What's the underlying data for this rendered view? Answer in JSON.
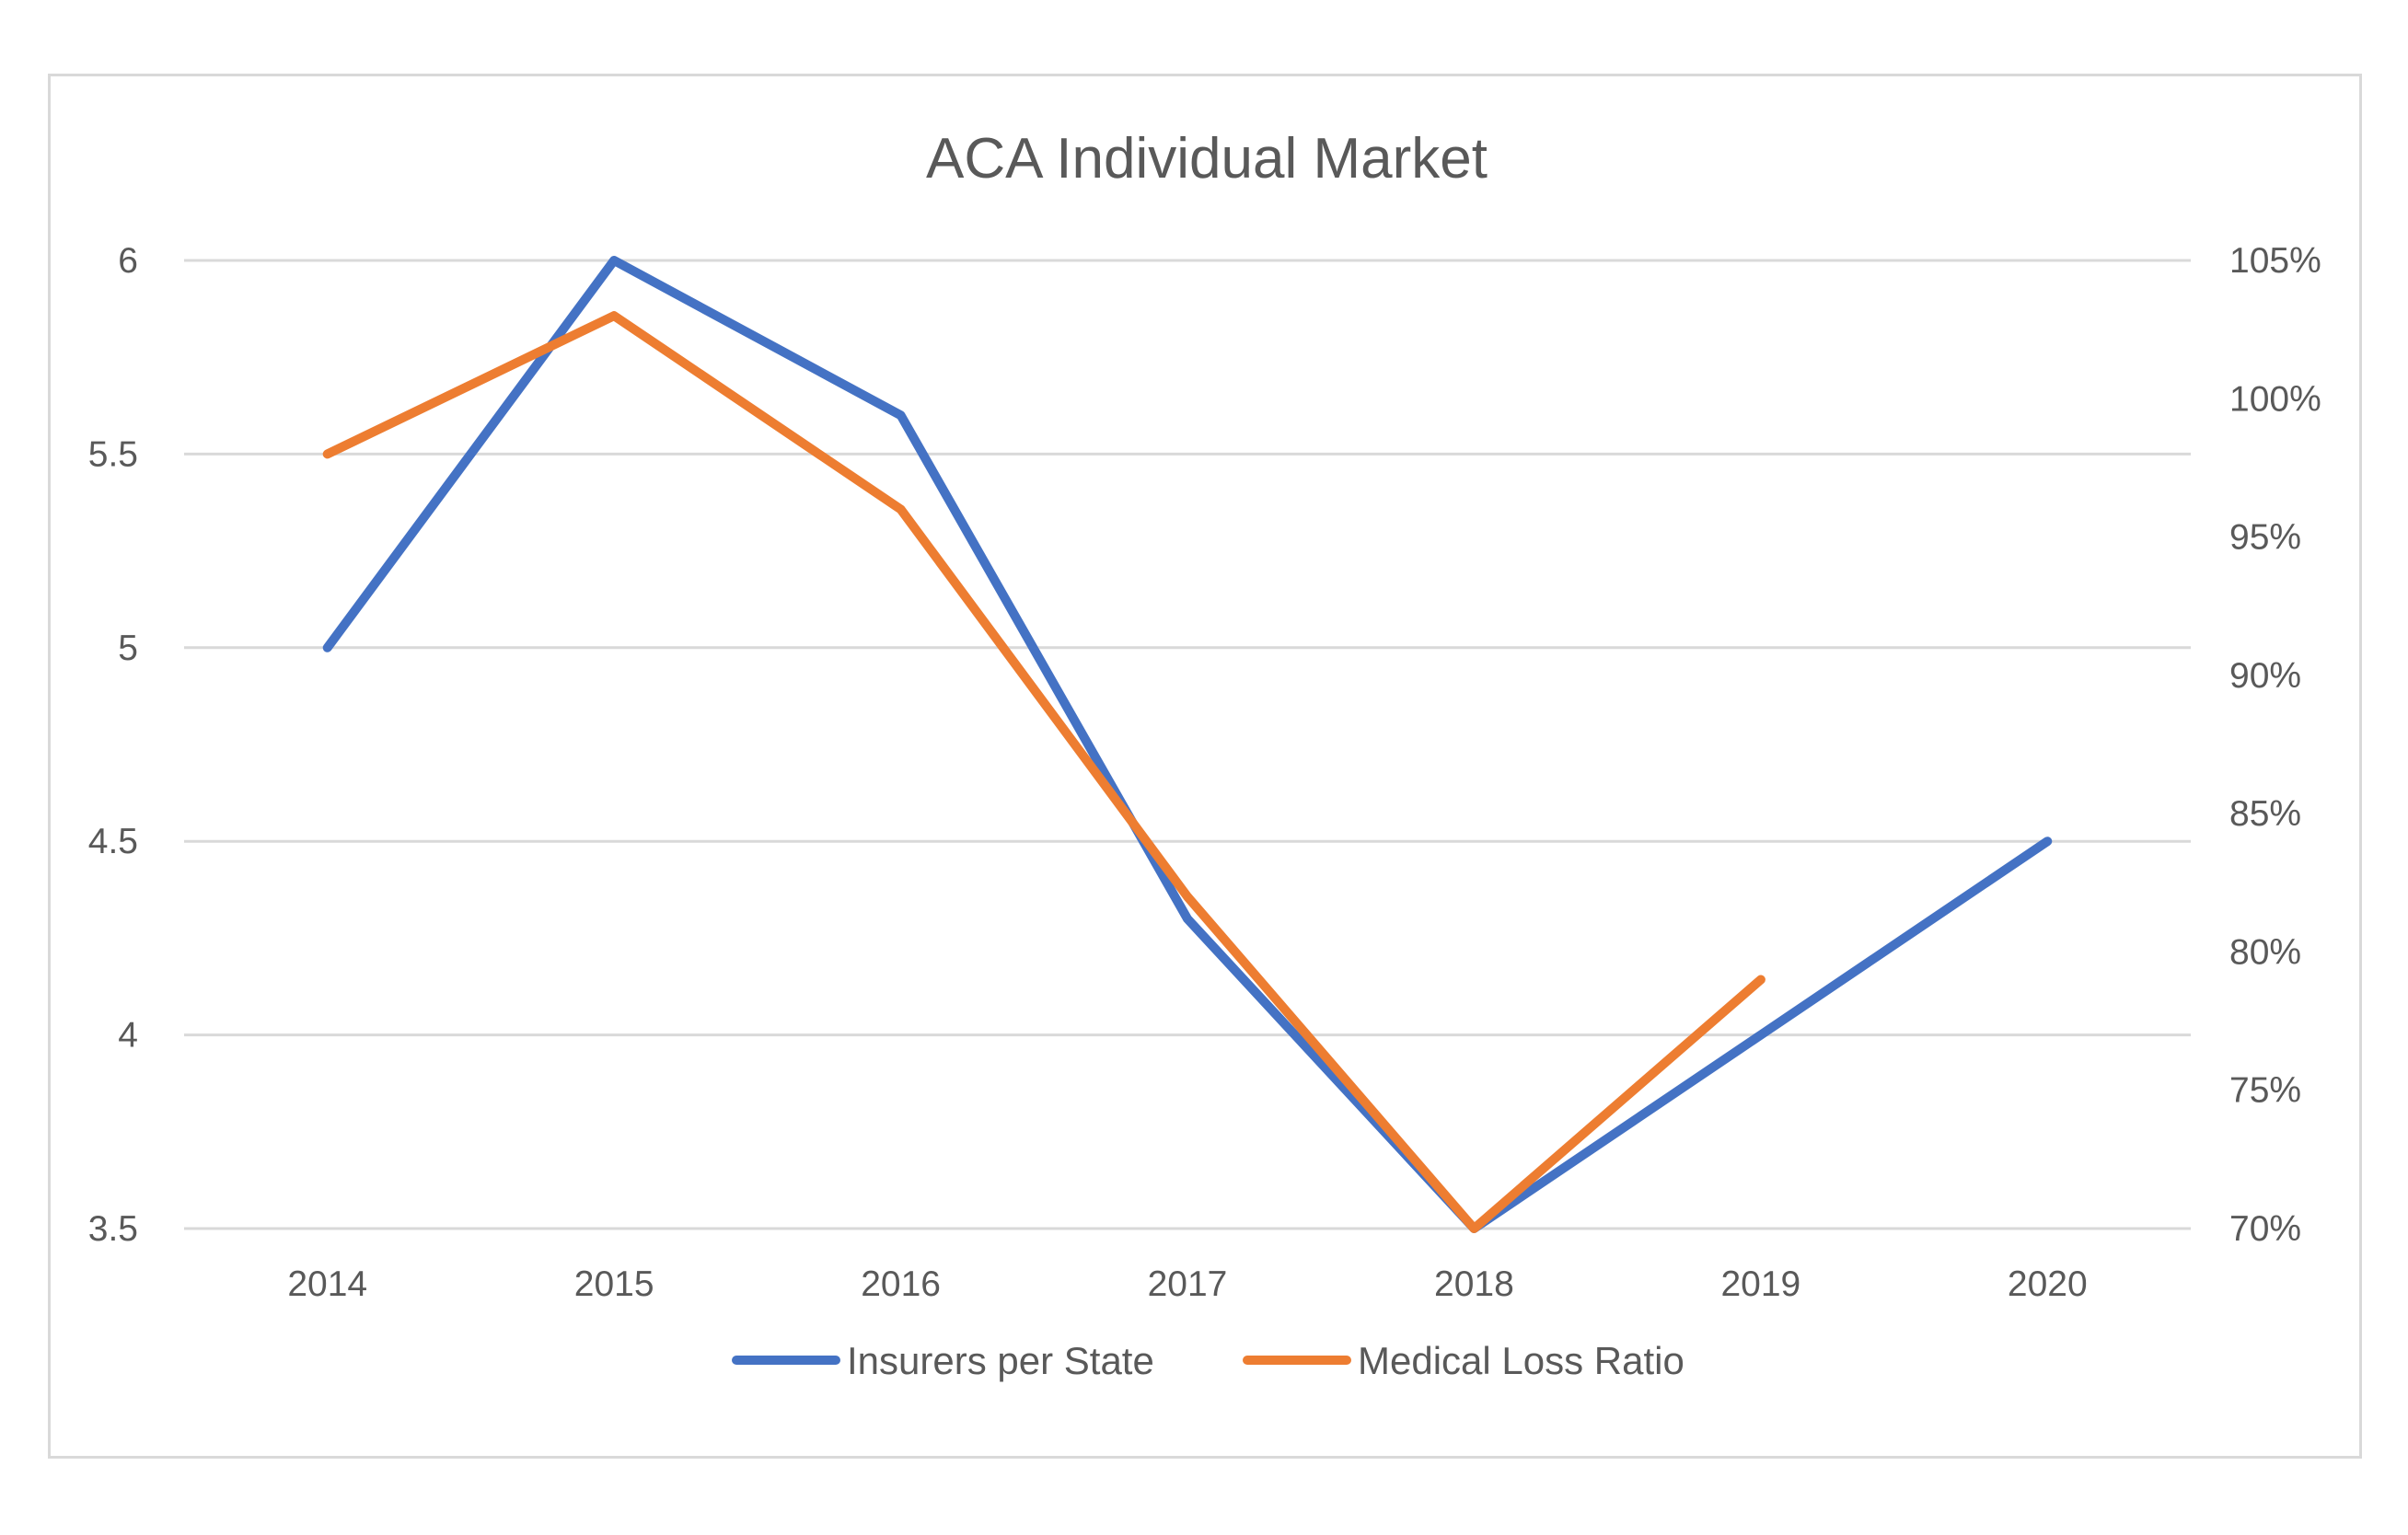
{
  "chart_data": {
    "type": "line",
    "title": "ACA Individual Market",
    "categories": [
      "2014",
      "2015",
      "2016",
      "2017",
      "2018",
      "2019",
      "2020"
    ],
    "y_left": {
      "ylim": [
        3.5,
        6
      ],
      "ticks": [
        3.5,
        4,
        4.5,
        5,
        5.5,
        6
      ],
      "tick_labels": [
        "3.5",
        "4",
        "4.5",
        "5",
        "5.5",
        "6"
      ]
    },
    "y_right": {
      "ylim": [
        70,
        105
      ],
      "ticks": [
        70,
        75,
        80,
        85,
        90,
        95,
        100,
        105
      ],
      "tick_labels": [
        "70%",
        "75%",
        "80%",
        "85%",
        "90%",
        "95%",
        "100%",
        "105%"
      ]
    },
    "grid": true,
    "legend_position": "bottom",
    "series": [
      {
        "name": "Insurers per State",
        "axis": "left",
        "color": "#4472C4",
        "values": [
          5.0,
          6.0,
          5.6,
          4.3,
          3.5,
          4.0,
          4.5
        ]
      },
      {
        "name": "Medical Loss Ratio",
        "axis": "right",
        "color": "#ED7D31",
        "values": [
          98,
          103,
          96,
          82,
          70,
          79,
          null
        ]
      }
    ]
  }
}
